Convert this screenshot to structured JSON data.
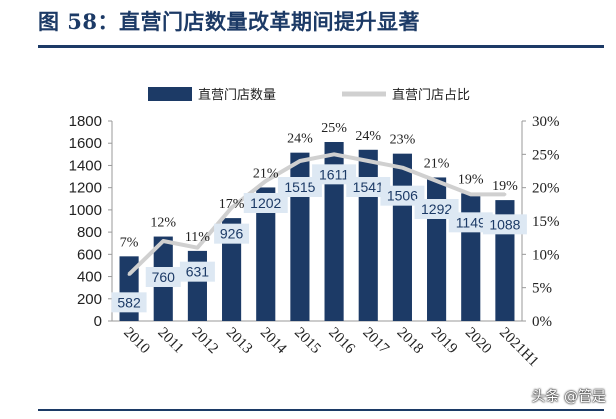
{
  "title": "图 58：直营门店数量改革期间提升显著",
  "watermark": "头条 @管是",
  "colors": {
    "bar": "#1c3a66",
    "line": "#d0d0d0",
    "label_bg": "#dde8f3",
    "title": "#1c3a66"
  },
  "chart_data": {
    "type": "bar",
    "categories": [
      "2010",
      "2011",
      "2012",
      "2013",
      "2014",
      "2015",
      "2016",
      "2017",
      "2018",
      "2019",
      "2020",
      "2021H1"
    ],
    "series": [
      {
        "name": "直营门店数量",
        "type": "bar",
        "axis": "left",
        "values": [
          582,
          760,
          631,
          926,
          1202,
          1515,
          1611,
          1541,
          1506,
          1292,
          1149,
          1088
        ],
        "labels": [
          "582",
          "760",
          "631",
          "926",
          "1202",
          "1515",
          "1611",
          "1541",
          "1506",
          "1292",
          "1149",
          "1088"
        ]
      },
      {
        "name": "直营门店占比",
        "type": "line",
        "axis": "right",
        "values": [
          7,
          12,
          11,
          17,
          21,
          24,
          25,
          24,
          23,
          21,
          19,
          19
        ],
        "labels": [
          "7%",
          "12%",
          "11%",
          "17%",
          "21%",
          "24%",
          "25%",
          "24%",
          "23%",
          "21%",
          "19%",
          "19%"
        ]
      }
    ],
    "y_left": {
      "min": 0,
      "max": 1800,
      "ticks": [
        "0",
        "200",
        "400",
        "600",
        "800",
        "1000",
        "1200",
        "1400",
        "1600",
        "1800"
      ]
    },
    "y_right": {
      "min": 0,
      "max": 30,
      "ticks": [
        "0%",
        "5%",
        "10%",
        "15%",
        "20%",
        "25%",
        "30%"
      ]
    },
    "legend_position": "top",
    "grid": false
  }
}
